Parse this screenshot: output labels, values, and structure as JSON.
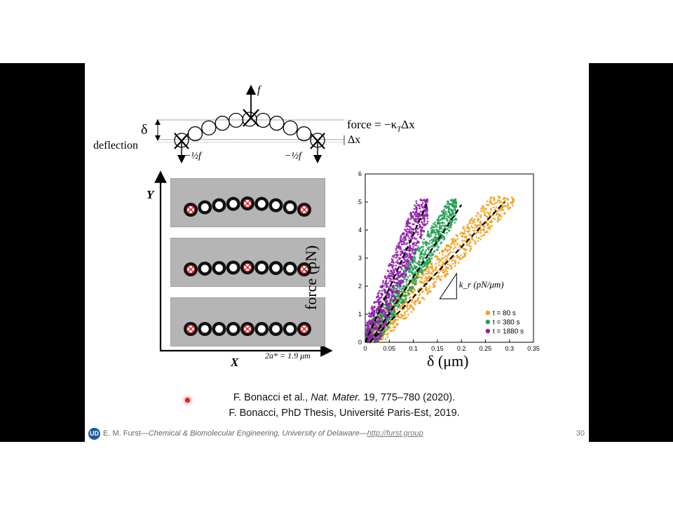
{
  "diagram": {
    "force_label": "f",
    "delta_label": "δ",
    "deflection_label": "deflection",
    "equation": "force = −κ",
    "equation_sub": "T",
    "equation_tail": "Δx",
    "dx_label": "Δx",
    "half_f_left": "−½f",
    "half_f_right": "−½f"
  },
  "micrographs": {
    "y_axis_label": "Y",
    "x_axis_label": "X",
    "scale_label": "2a* = 1.9 μm"
  },
  "chart_data": {
    "type": "scatter",
    "xlabel": "δ (μm)",
    "ylabel": "force (pN)",
    "xlim": [
      0,
      0.35
    ],
    "ylim": [
      0,
      6
    ],
    "xticks": [
      "0",
      "0.05",
      "0.1",
      "0.15",
      "0.2",
      "0.25",
      "0.3",
      "0.35"
    ],
    "yticks": [
      "0",
      "1",
      "2",
      "3",
      "4",
      "5",
      "6"
    ],
    "annotation": "k_r (pN/μm)",
    "legend_position": "lower-right",
    "series": [
      {
        "name": "t = 80 s",
        "color": "#f0a020",
        "x_range": [
          0.0,
          0.31
        ],
        "y_range": [
          0,
          5.2
        ],
        "slope": 18,
        "fit": [
          [
            0.01,
            0
          ],
          [
            0.29,
            5.0
          ]
        ]
      },
      {
        "name": "t = 380 s",
        "color": "#1fa050",
        "x_range": [
          0.0,
          0.19
        ],
        "y_range": [
          0,
          5.1
        ],
        "slope": 27,
        "fit": [
          [
            0.01,
            0
          ],
          [
            0.2,
            4.9
          ]
        ]
      },
      {
        "name": "t = 1880 s",
        "color": "#8e1fa8",
        "x_range": [
          0.0,
          0.13
        ],
        "y_range": [
          0,
          5.1
        ],
        "slope": 42,
        "fit": [
          [
            0.0,
            0
          ],
          [
            0.13,
            5.0
          ]
        ]
      }
    ]
  },
  "citation": {
    "line1_pre": "F. Bonacci et al., ",
    "line1_journal": "Nat. Mater.",
    "line1_post": " 19, 775–780 (2020).",
    "line2": "F. Bonacci, PhD Thesis, Université Paris-Est, 2019."
  },
  "footer": {
    "author": "E. M. Furst",
    "sep1": "—",
    "department": "Chemical & Biomolecular Engineering, University of Delaware",
    "sep2": "—",
    "link": "http://furst.group",
    "page": "30",
    "logo_text": "UD"
  }
}
